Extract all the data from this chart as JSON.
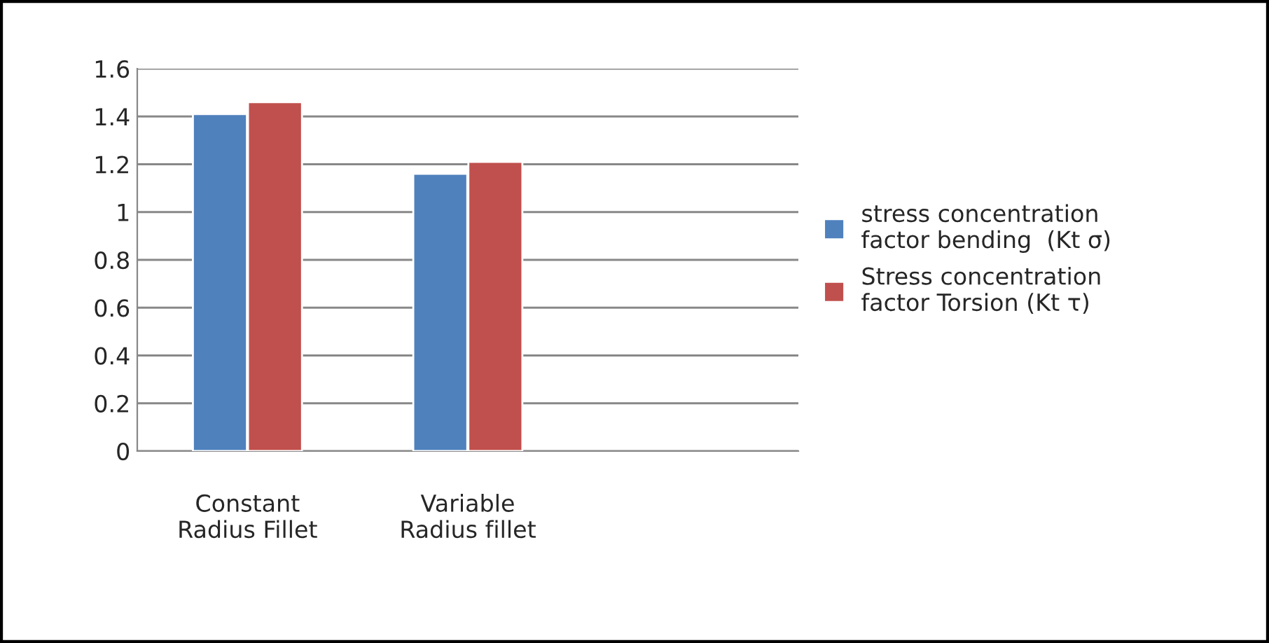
{
  "chart_data": {
    "type": "bar",
    "categories": [
      "Constant\nRadius Fillet",
      "Variable\nRadius fillet",
      null
    ],
    "series": [
      {
        "name": "stress concentration factor bending  (Kt σ)",
        "color": "#4f81bd",
        "values": [
          1.41,
          1.16,
          null
        ]
      },
      {
        "name": "Stress concentration factor Torsion (Kt τ)",
        "color": "#c0504d",
        "values": [
          1.46,
          1.21,
          null
        ]
      }
    ],
    "ylim": [
      0,
      1.6
    ],
    "yticks": [
      0,
      {
        "value": 0.2,
        "label": "0.2"
      },
      {
        "value": 0.4,
        "label": "0.4"
      },
      {
        "value": 0.6,
        "label": "0.6"
      },
      {
        "value": 0.8,
        "label": "0.8"
      },
      1,
      {
        "value": 1.2,
        "label": "1.2"
      },
      {
        "value": 1.4,
        "label": "1.4"
      },
      {
        "value": 1.6,
        "label": "1.6"
      }
    ],
    "grid": "y",
    "legend": "right"
  }
}
